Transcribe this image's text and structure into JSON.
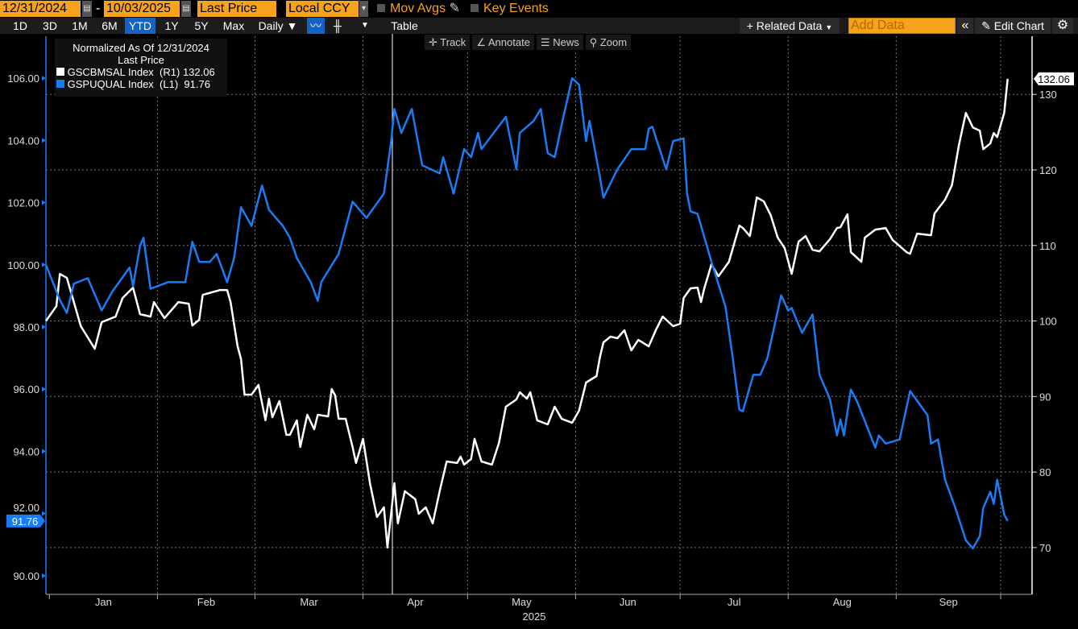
{
  "toolbar": {
    "start_date": "12/31/2024",
    "dash": "-",
    "end_date": "10/03/2025",
    "field": "Last Price",
    "currency": "Local CCY",
    "mov_avgs": "Mov Avgs",
    "key_events": "Key Events",
    "periods": [
      "1D",
      "3D",
      "1M",
      "6M",
      "YTD",
      "1Y",
      "5Y",
      "Max"
    ],
    "active_period": "YTD",
    "frequency": "Daily ▼",
    "table": "Table",
    "related_data": "+ Related Data",
    "add_data_placeholder": "Add Data",
    "collapse": "«",
    "edit_chart": "Edit Chart",
    "settings_icon": "gear-icon"
  },
  "chart_tools": {
    "track": "Track",
    "annotate": "Annotate",
    "news": "News",
    "zoom": "Zoom"
  },
  "legend": {
    "title": "Normalized As Of 12/31/2024",
    "subtitle": "Last Price",
    "items": [
      {
        "name": "GSCBMSAL Index",
        "axis": "(R1)",
        "value": "132.06",
        "color": "#ffffff"
      },
      {
        "name": "GSPUQUAL Index",
        "axis": "(L1)",
        "value": "91.76",
        "color": "#1a7cf5"
      }
    ]
  },
  "chart_data": {
    "type": "line",
    "xlim": [
      "2024-12-31",
      "2025-10-10"
    ],
    "x_ticks": [
      "Jan",
      "Feb",
      "Mar",
      "Apr",
      "May",
      "Jun",
      "Jul",
      "Aug",
      "Sep"
    ],
    "x_year": "2025",
    "left_axis": {
      "ylim": [
        89.4,
        107.35
      ],
      "ticks": [
        "90.00",
        "92.00",
        "94.00",
        "96.00",
        "98.00",
        "100.00",
        "102.00",
        "104.00",
        "106.00"
      ],
      "last_label": "91.76"
    },
    "right_axis": {
      "ylim": [
        63.8,
        137.7
      ],
      "ticks": [
        "70",
        "80",
        "90",
        "100",
        "110",
        "120",
        "130"
      ],
      "last_label": "132.06"
    },
    "grid": true,
    "legend_position": "top-left",
    "series": [
      {
        "name": "GSCBMSAL Index",
        "axis": "right",
        "color": "#ffffff",
        "points": [
          [
            "2024-12-31",
            100
          ],
          [
            "2025-01-03",
            101.97
          ],
          [
            "2025-01-04",
            106.23
          ],
          [
            "2025-01-06",
            105.7
          ],
          [
            "2025-01-10",
            99.31
          ],
          [
            "2025-01-14",
            96.32
          ],
          [
            "2025-01-16",
            99.84
          ],
          [
            "2025-01-20",
            100.58
          ],
          [
            "2025-01-22",
            103.04
          ],
          [
            "2025-01-25",
            104.42
          ],
          [
            "2025-01-27",
            100.9
          ],
          [
            "2025-01-30",
            100.58
          ],
          [
            "2025-01-31",
            102.5
          ],
          [
            "2025-02-03",
            100.37
          ],
          [
            "2025-02-07",
            102.5
          ],
          [
            "2025-02-10",
            102.29
          ],
          [
            "2025-02-11",
            99.41
          ],
          [
            "2025-02-13",
            100.16
          ],
          [
            "2025-02-14",
            103.46
          ],
          [
            "2025-02-19",
            104.1
          ],
          [
            "2025-02-21",
            104.1
          ],
          [
            "2025-02-22",
            102.5
          ],
          [
            "2025-02-24",
            96.64
          ],
          [
            "2025-02-25",
            94.94
          ],
          [
            "2025-02-26",
            90.25
          ],
          [
            "2025-02-28",
            90.25
          ],
          [
            "2025-03-02",
            91.53
          ],
          [
            "2025-03-04",
            86.84
          ],
          [
            "2025-03-05",
            89.71
          ],
          [
            "2025-03-06",
            87.26
          ],
          [
            "2025-03-08",
            89.4
          ],
          [
            "2025-03-10",
            84.92
          ],
          [
            "2025-03-11",
            84.92
          ],
          [
            "2025-03-13",
            86.84
          ],
          [
            "2025-03-14",
            83.32
          ],
          [
            "2025-03-16",
            87.58
          ],
          [
            "2025-03-18",
            85.66
          ],
          [
            "2025-03-19",
            87.58
          ],
          [
            "2025-03-22",
            87.37
          ],
          [
            "2025-03-23",
            90.99
          ],
          [
            "2025-03-24",
            90.14
          ],
          [
            "2025-03-25",
            87.05
          ],
          [
            "2025-03-27",
            87.05
          ],
          [
            "2025-03-29",
            83.32
          ],
          [
            "2025-03-30",
            81.19
          ],
          [
            "2025-04-01",
            84.39
          ],
          [
            "2025-04-03",
            78.52
          ],
          [
            "2025-04-05",
            74.05
          ],
          [
            "2025-04-07",
            75.33
          ],
          [
            "2025-04-08",
            70.0
          ],
          [
            "2025-04-10",
            78.52
          ],
          [
            "2025-04-11",
            73.2
          ],
          [
            "2025-04-13",
            77.46
          ],
          [
            "2025-04-16",
            76.39
          ],
          [
            "2025-04-17",
            74.47
          ],
          [
            "2025-04-19",
            75.33
          ],
          [
            "2025-04-21",
            73.2
          ],
          [
            "2025-04-23",
            77.46
          ],
          [
            "2025-04-25",
            81.4
          ],
          [
            "2025-04-28",
            81.19
          ],
          [
            "2025-04-29",
            82.04
          ],
          [
            "2025-04-30",
            80.98
          ],
          [
            "2025-05-02",
            81.72
          ],
          [
            "2025-05-03",
            84.39
          ],
          [
            "2025-05-05",
            81.4
          ],
          [
            "2025-05-08",
            80.98
          ],
          [
            "2025-05-10",
            83.85
          ],
          [
            "2025-05-12",
            88.65
          ],
          [
            "2025-05-15",
            89.61
          ],
          [
            "2025-05-16",
            90.57
          ],
          [
            "2025-05-18",
            89.71
          ],
          [
            "2025-05-19",
            90.57
          ],
          [
            "2025-05-21",
            86.84
          ],
          [
            "2025-05-24",
            86.3
          ],
          [
            "2025-05-26",
            88.65
          ],
          [
            "2025-05-28",
            87.05
          ],
          [
            "2025-05-31",
            86.52
          ],
          [
            "2025-06-02",
            88.12
          ],
          [
            "2025-06-04",
            91.85
          ],
          [
            "2025-06-07",
            92.7
          ],
          [
            "2025-06-08",
            95.26
          ],
          [
            "2025-06-09",
            97.17
          ],
          [
            "2025-06-11",
            97.92
          ],
          [
            "2025-06-13",
            97.71
          ],
          [
            "2025-06-15",
            98.77
          ],
          [
            "2025-06-17",
            96.11
          ],
          [
            "2025-06-19",
            97.49
          ],
          [
            "2025-06-22",
            96.64
          ],
          [
            "2025-06-24",
            98.77
          ],
          [
            "2025-06-26",
            100.58
          ],
          [
            "2025-06-29",
            99.31
          ],
          [
            "2025-07-01",
            99.63
          ],
          [
            "2025-07-02",
            103.04
          ],
          [
            "2025-07-04",
            104.32
          ],
          [
            "2025-07-06",
            104.42
          ],
          [
            "2025-07-07",
            102.5
          ],
          [
            "2025-07-08",
            104.42
          ],
          [
            "2025-07-10",
            107.51
          ],
          [
            "2025-07-12",
            105.91
          ],
          [
            "2025-07-15",
            107.83
          ],
          [
            "2025-07-18",
            112.63
          ],
          [
            "2025-07-19",
            112.31
          ],
          [
            "2025-07-21",
            111.24
          ],
          [
            "2025-07-23",
            116.36
          ],
          [
            "2025-07-25",
            115.83
          ],
          [
            "2025-07-27",
            114.01
          ],
          [
            "2025-07-29",
            111.03
          ],
          [
            "2025-07-31",
            109.64
          ],
          [
            "2025-08-02",
            106.23
          ],
          [
            "2025-08-04",
            110.5
          ],
          [
            "2025-08-06",
            111.24
          ],
          [
            "2025-08-08",
            109.43
          ],
          [
            "2025-08-10",
            109.22
          ],
          [
            "2025-08-13",
            110.82
          ],
          [
            "2025-08-15",
            112.31
          ],
          [
            "2025-08-16",
            112.42
          ],
          [
            "2025-08-18",
            114.12
          ],
          [
            "2025-08-19",
            109.11
          ],
          [
            "2025-08-22",
            107.83
          ],
          [
            "2025-08-23",
            111.03
          ],
          [
            "2025-08-26",
            112.1
          ],
          [
            "2025-08-29",
            112.31
          ],
          [
            "2025-08-31",
            110.71
          ],
          [
            "2025-09-04",
            109.11
          ],
          [
            "2025-09-05",
            108.9
          ],
          [
            "2025-09-07",
            111.56
          ],
          [
            "2025-09-11",
            111.35
          ],
          [
            "2025-09-12",
            114.23
          ],
          [
            "2025-09-15",
            116.04
          ],
          [
            "2025-09-17",
            117.96
          ],
          [
            "2025-09-19",
            123.29
          ],
          [
            "2025-09-21",
            127.55
          ],
          [
            "2025-09-23",
            125.63
          ],
          [
            "2025-09-25",
            125.2
          ],
          [
            "2025-09-26",
            122.75
          ],
          [
            "2025-09-28",
            123.5
          ],
          [
            "2025-09-29",
            124.88
          ],
          [
            "2025-09-30",
            124.35
          ],
          [
            "2025-10-02",
            127.55
          ],
          [
            "2025-10-03",
            132.06
          ]
        ]
      },
      {
        "name": "GSPUQUAL Index",
        "axis": "left",
        "color": "#1a7cf5",
        "points": [
          [
            "2024-12-31",
            100.0
          ],
          [
            "2025-01-04",
            98.87
          ],
          [
            "2025-01-06",
            98.45
          ],
          [
            "2025-01-08",
            99.39
          ],
          [
            "2025-01-12",
            99.57
          ],
          [
            "2025-01-16",
            98.53
          ],
          [
            "2025-01-19",
            99.13
          ],
          [
            "2025-01-24",
            99.91
          ],
          [
            "2025-01-25",
            99.31
          ],
          [
            "2025-01-27",
            100.61
          ],
          [
            "2025-01-28",
            100.87
          ],
          [
            "2025-01-30",
            99.23
          ],
          [
            "2025-02-04",
            99.44
          ],
          [
            "2025-02-09",
            99.44
          ],
          [
            "2025-02-11",
            100.74
          ],
          [
            "2025-02-13",
            100.09
          ],
          [
            "2025-02-16",
            100.09
          ],
          [
            "2025-02-18",
            100.35
          ],
          [
            "2025-02-21",
            99.44
          ],
          [
            "2025-02-23",
            100.22
          ],
          [
            "2025-02-25",
            101.85
          ],
          [
            "2025-02-28",
            101.25
          ],
          [
            "2025-03-03",
            102.55
          ],
          [
            "2025-03-05",
            101.77
          ],
          [
            "2025-03-09",
            101.25
          ],
          [
            "2025-03-11",
            100.87
          ],
          [
            "2025-03-13",
            100.22
          ],
          [
            "2025-03-17",
            99.44
          ],
          [
            "2025-03-19",
            98.84
          ],
          [
            "2025-03-20",
            99.44
          ],
          [
            "2025-03-25",
            100.35
          ],
          [
            "2025-03-29",
            102.03
          ],
          [
            "2025-04-02",
            101.51
          ],
          [
            "2025-04-07",
            102.29
          ],
          [
            "2025-04-09",
            103.9
          ],
          [
            "2025-04-10",
            105.01
          ],
          [
            "2025-04-12",
            104.24
          ],
          [
            "2025-04-15",
            105.01
          ],
          [
            "2025-04-18",
            103.2
          ],
          [
            "2025-04-23",
            102.94
          ],
          [
            "2025-04-24",
            103.46
          ],
          [
            "2025-04-27",
            102.29
          ],
          [
            "2025-04-30",
            103.72
          ],
          [
            "2025-05-02",
            103.46
          ],
          [
            "2025-05-04",
            104.24
          ],
          [
            "2025-05-05",
            103.72
          ],
          [
            "2025-05-12",
            104.76
          ],
          [
            "2025-05-15",
            103.07
          ],
          [
            "2025-05-16",
            104.24
          ],
          [
            "2025-05-20",
            104.63
          ],
          [
            "2025-05-22",
            105.01
          ],
          [
            "2025-05-24",
            103.59
          ],
          [
            "2025-05-26",
            103.46
          ],
          [
            "2025-05-28",
            104.5
          ],
          [
            "2025-05-31",
            106.0
          ],
          [
            "2025-06-02",
            105.79
          ],
          [
            "2025-06-04",
            103.98
          ],
          [
            "2025-06-05",
            104.63
          ],
          [
            "2025-06-08",
            102.81
          ],
          [
            "2025-06-09",
            102.16
          ],
          [
            "2025-06-13",
            103.07
          ],
          [
            "2025-06-17",
            103.72
          ],
          [
            "2025-06-21",
            103.72
          ],
          [
            "2025-06-22",
            104.37
          ],
          [
            "2025-06-23",
            104.44
          ],
          [
            "2025-06-27",
            103.07
          ],
          [
            "2025-06-29",
            103.98
          ],
          [
            "2025-07-02",
            104.06
          ],
          [
            "2025-07-03",
            102.29
          ],
          [
            "2025-07-04",
            101.72
          ],
          [
            "2025-07-06",
            101.64
          ],
          [
            "2025-07-10",
            100.09
          ],
          [
            "2025-07-14",
            98.66
          ],
          [
            "2025-07-16",
            97.1
          ],
          [
            "2025-07-18",
            95.34
          ],
          [
            "2025-07-19",
            95.29
          ],
          [
            "2025-07-22",
            96.46
          ],
          [
            "2025-07-24",
            96.46
          ],
          [
            "2025-07-26",
            96.98
          ],
          [
            "2025-07-30",
            99.02
          ],
          [
            "2025-08-01",
            98.53
          ],
          [
            "2025-08-02",
            98.61
          ],
          [
            "2025-08-05",
            97.81
          ],
          [
            "2025-08-08",
            98.4
          ],
          [
            "2025-08-10",
            96.46
          ],
          [
            "2025-08-13",
            95.68
          ],
          [
            "2025-08-15",
            94.51
          ],
          [
            "2025-08-16",
            95.03
          ],
          [
            "2025-08-17",
            94.51
          ],
          [
            "2025-08-19",
            95.99
          ],
          [
            "2025-08-21",
            95.55
          ],
          [
            "2025-08-26",
            94.12
          ],
          [
            "2025-08-27",
            94.51
          ],
          [
            "2025-08-29",
            94.25
          ],
          [
            "2025-09-02",
            94.38
          ],
          [
            "2025-09-05",
            95.94
          ],
          [
            "2025-09-10",
            95.16
          ],
          [
            "2025-09-11",
            94.25
          ],
          [
            "2025-09-13",
            94.38
          ],
          [
            "2025-09-15",
            93.09
          ],
          [
            "2025-09-18",
            92.18
          ],
          [
            "2025-09-21",
            91.14
          ],
          [
            "2025-09-23",
            90.88
          ],
          [
            "2025-09-25",
            91.27
          ],
          [
            "2025-09-26",
            92.18
          ],
          [
            "2025-09-28",
            92.7
          ],
          [
            "2025-09-29",
            92.31
          ],
          [
            "2025-09-30",
            93.09
          ],
          [
            "2025-10-02",
            91.97
          ],
          [
            "2025-10-03",
            91.76
          ]
        ]
      }
    ]
  }
}
